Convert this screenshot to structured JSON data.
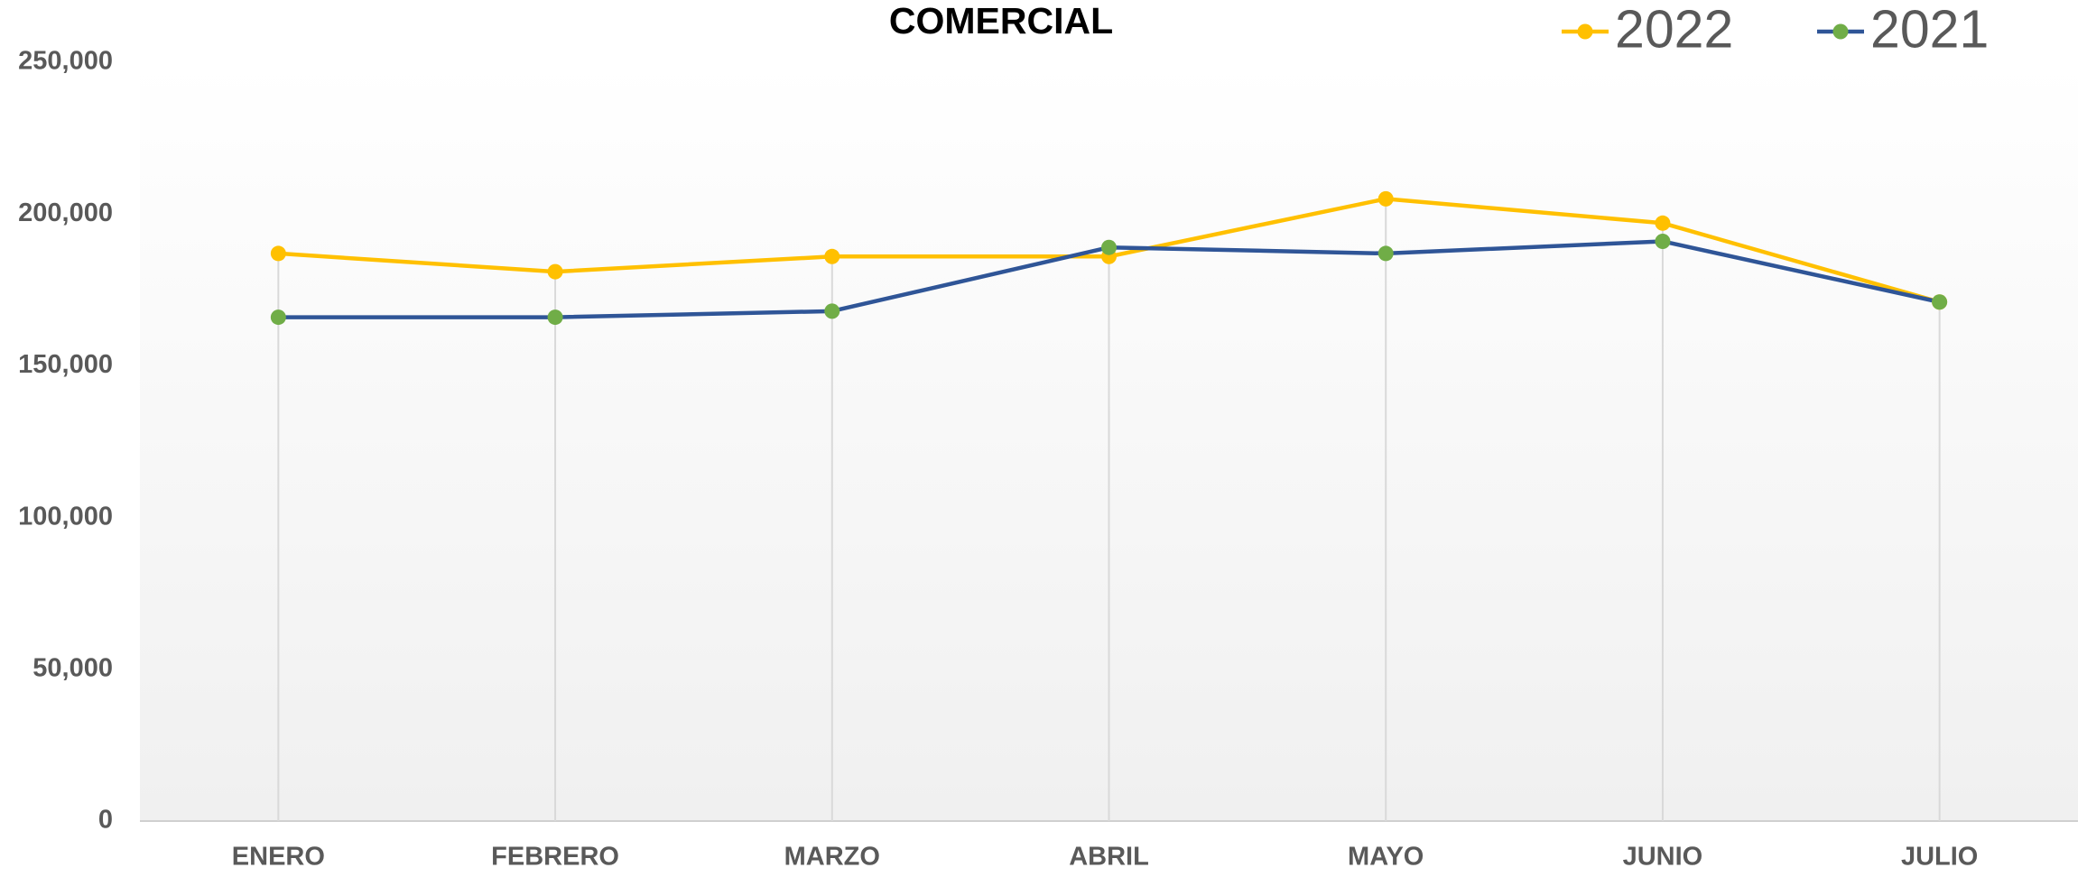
{
  "chart_data": {
    "type": "line",
    "title": "COMERCIAL",
    "categories": [
      "ENERO",
      "FEBRERO",
      "MARZO",
      "ABRIL",
      "MAYO",
      "JUNIO",
      "JULIO"
    ],
    "series": [
      {
        "name": "2022",
        "color": "#FFC000",
        "marker_color": "#FFC000",
        "values": [
          187000,
          181000,
          186000,
          186000,
          205000,
          197000,
          171000
        ]
      },
      {
        "name": "2021",
        "color": "#2F5597",
        "marker_color": "#70AD47",
        "values": [
          166000,
          166000,
          168000,
          189000,
          187000,
          191000,
          171000
        ]
      }
    ],
    "ylim": [
      0,
      250000
    ],
    "yticks": [
      0,
      {
        "value": 50000,
        "label": "50,000"
      },
      {
        "value": 100000,
        "label": "100,000"
      },
      {
        "value": 150000,
        "label": "150,000"
      },
      {
        "value": 200000,
        "label": "200,000"
      },
      {
        "value": 250000,
        "label": "250,000"
      }
    ],
    "drop_lines": true,
    "legend": "top-right"
  }
}
